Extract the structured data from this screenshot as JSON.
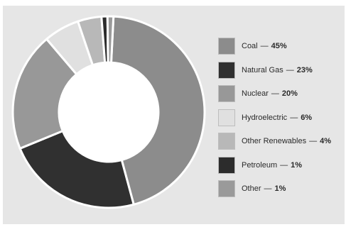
{
  "chart_data": {
    "type": "pie",
    "title": "",
    "slices": [
      {
        "label": "Coal",
        "value": 45,
        "value_label": "45%",
        "color": "#8c8c8c"
      },
      {
        "label": "Natural Gas",
        "value": 23,
        "value_label": "23%",
        "color": "#303030"
      },
      {
        "label": "Nuclear",
        "value": 20,
        "value_label": "20%",
        "color": "#989898"
      },
      {
        "label": "Hydroelectric",
        "value": 6,
        "value_label": "6%",
        "color": "#e0e0e0"
      },
      {
        "label": "Other Renewables",
        "value": 4,
        "value_label": "4%",
        "color": "#b8b8b8"
      },
      {
        "label": "Petroleum",
        "value": 1,
        "value_label": "1%",
        "color": "#2c2c2c"
      },
      {
        "label": "Other",
        "value": 1,
        "value_label": "1%",
        "color": "#9a9a9a"
      }
    ],
    "legend": "right",
    "separator": "—",
    "hole": true
  }
}
